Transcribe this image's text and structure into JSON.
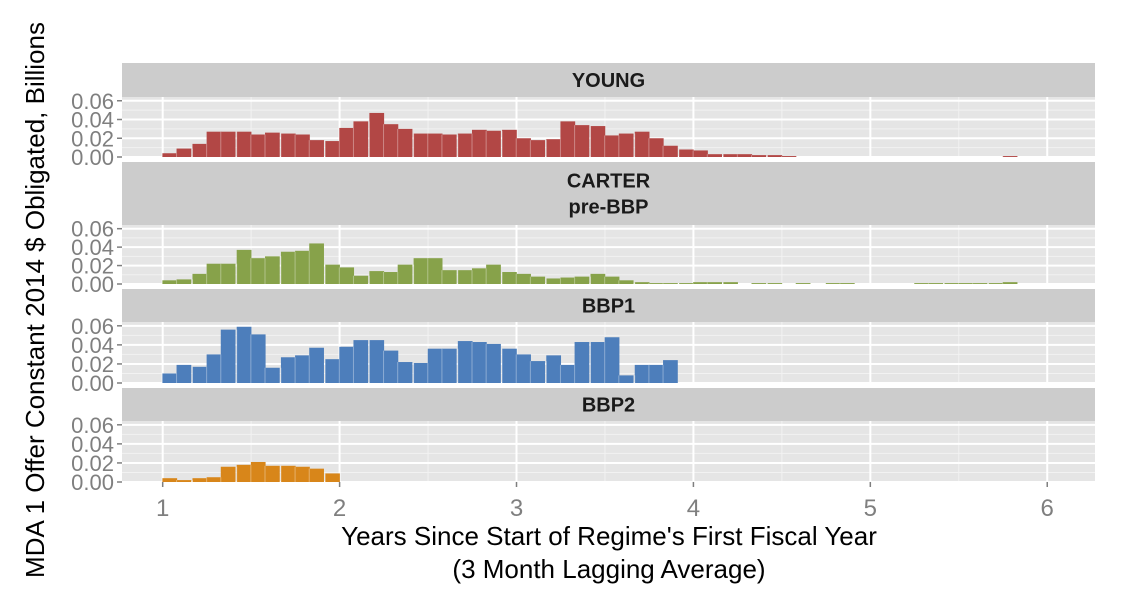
{
  "chart_data": {
    "type": "bar",
    "xlabel": "Years Since Start of Regime's First Fiscal Year",
    "xlabel_line2": "(3 Month Lagging Average)",
    "ylabel": "MDA 1 Offer Constant 2014 $ Obligated, Billions",
    "xlim": [
      0.77,
      6.27
    ],
    "ylim": [
      0,
      0.064
    ],
    "x_ticks": [
      "1",
      "2",
      "3",
      "4",
      "5",
      "6"
    ],
    "y_ticks": [
      "0.00",
      "0.02",
      "0.04",
      "0.06"
    ],
    "bin_width": 0.0833,
    "grid": true,
    "panels": [
      {
        "label": "YOUNG",
        "color": "#B24745",
        "x": [
          1.04,
          1.12,
          1.21,
          1.29,
          1.37,
          1.46,
          1.54,
          1.62,
          1.71,
          1.79,
          1.87,
          1.96,
          2.04,
          2.12,
          2.21,
          2.29,
          2.37,
          2.46,
          2.54,
          2.62,
          2.71,
          2.79,
          2.87,
          2.96,
          3.04,
          3.12,
          3.21,
          3.29,
          3.37,
          3.46,
          3.54,
          3.62,
          3.71,
          3.79,
          3.87,
          3.96,
          4.04,
          4.12,
          4.21,
          4.29,
          4.37,
          4.46,
          4.54,
          5.79
        ],
        "values": [
          0.004,
          0.009,
          0.014,
          0.027,
          0.027,
          0.027,
          0.024,
          0.026,
          0.025,
          0.024,
          0.018,
          0.017,
          0.031,
          0.038,
          0.047,
          0.035,
          0.03,
          0.025,
          0.025,
          0.024,
          0.025,
          0.029,
          0.028,
          0.029,
          0.02,
          0.018,
          0.019,
          0.038,
          0.034,
          0.033,
          0.023,
          0.025,
          0.027,
          0.02,
          0.012,
          0.008,
          0.007,
          0.003,
          0.003,
          0.003,
          0.002,
          0.002,
          0.001,
          0.001
        ]
      },
      {
        "label": "CARTER\npre-BBP",
        "color": "#87A24A",
        "x": [
          1.04,
          1.12,
          1.21,
          1.29,
          1.37,
          1.46,
          1.54,
          1.62,
          1.71,
          1.79,
          1.87,
          1.96,
          2.04,
          2.12,
          2.21,
          2.29,
          2.37,
          2.46,
          2.54,
          2.62,
          2.71,
          2.79,
          2.87,
          2.96,
          3.04,
          3.12,
          3.21,
          3.29,
          3.37,
          3.46,
          3.54,
          3.62,
          3.71,
          3.79,
          3.87,
          3.96,
          4.04,
          4.12,
          4.21,
          4.29,
          4.37,
          4.46,
          4.54,
          4.62,
          4.71,
          4.79,
          4.87,
          4.96,
          5.04,
          5.12,
          5.21,
          5.29,
          5.37,
          5.46,
          5.54,
          5.62,
          5.71,
          5.79
        ],
        "values": [
          0.004,
          0.005,
          0.011,
          0.022,
          0.022,
          0.037,
          0.028,
          0.03,
          0.035,
          0.036,
          0.044,
          0.021,
          0.018,
          0.009,
          0.014,
          0.013,
          0.021,
          0.028,
          0.028,
          0.015,
          0.015,
          0.017,
          0.021,
          0.013,
          0.011,
          0.008,
          0.006,
          0.007,
          0.008,
          0.011,
          0.008,
          0.004,
          0.002,
          0.001,
          0.001,
          0.001,
          0.002,
          0.002,
          0.002,
          0,
          0.001,
          0.001,
          0,
          0.001,
          0,
          0.001,
          0.001,
          0,
          0,
          0,
          0,
          0.001,
          0.001,
          0.001,
          0.001,
          0.001,
          0.001,
          0.002
        ]
      },
      {
        "label": "BBP1",
        "color": "#4D7EBB",
        "x": [
          1.04,
          1.12,
          1.21,
          1.29,
          1.37,
          1.46,
          1.54,
          1.62,
          1.71,
          1.79,
          1.87,
          1.96,
          2.04,
          2.12,
          2.21,
          2.29,
          2.37,
          2.46,
          2.54,
          2.62,
          2.71,
          2.79,
          2.87,
          2.96,
          3.04,
          3.12,
          3.21,
          3.29,
          3.37,
          3.46,
          3.54,
          3.62,
          3.71,
          3.79,
          3.87,
          3.96
        ],
        "values": [
          0.01,
          0.019,
          0.017,
          0.03,
          0.056,
          0.059,
          0.051,
          0.016,
          0.027,
          0.029,
          0.037,
          0.025,
          0.038,
          0.045,
          0.045,
          0.034,
          0.022,
          0.021,
          0.036,
          0.036,
          0.044,
          0.043,
          0.041,
          0.036,
          0.03,
          0.023,
          0.029,
          0.019,
          0.043,
          0.043,
          0.048,
          0.008,
          0.019,
          0.019,
          0.024,
          0
        ]
      },
      {
        "label": "BBP2",
        "color": "#D8861A",
        "x": [
          1.04,
          1.12,
          1.21,
          1.29,
          1.37,
          1.46,
          1.54,
          1.62,
          1.71,
          1.79,
          1.87,
          1.96
        ],
        "values": [
          0.004,
          0.002,
          0.004,
          0.005,
          0.016,
          0.018,
          0.021,
          0.017,
          0.017,
          0.016,
          0.014,
          0.009
        ]
      }
    ]
  }
}
